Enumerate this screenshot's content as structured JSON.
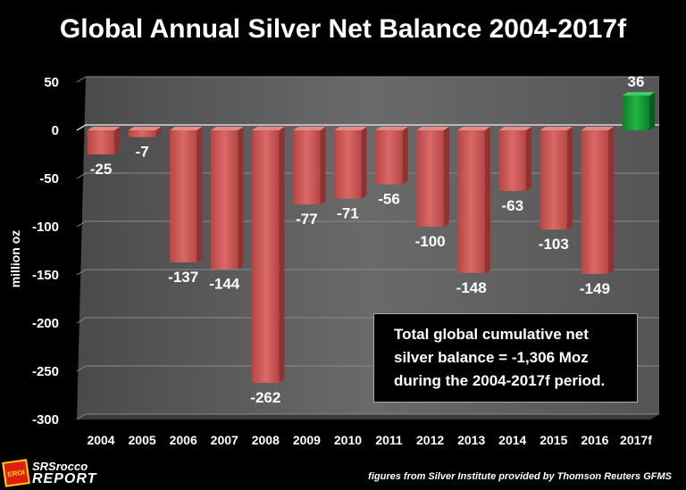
{
  "chart_data": {
    "type": "bar",
    "title": "Global Annual Silver Net Balance 2004-2017f",
    "ylabel": "million oz",
    "xlabel": "",
    "ylim": [
      -300,
      50
    ],
    "yticks": [
      "50",
      "0",
      "-50",
      "-100",
      "-150",
      "-200",
      "-250",
      "-300"
    ],
    "grid": true,
    "categories": [
      "2004",
      "2005",
      "2006",
      "2007",
      "2008",
      "2009",
      "2010",
      "2011",
      "2012",
      "2013",
      "2014",
      "2015",
      "2016",
      "2017f"
    ],
    "values": [
      -25,
      -7,
      -137,
      -144,
      -262,
      -77,
      -71,
      -56,
      -100,
      -148,
      -63,
      -103,
      -149,
      36
    ],
    "data_labels": [
      "-25",
      "-7",
      "-137",
      "-144",
      "-262",
      "-77",
      "-71",
      "-56",
      "-100",
      "-148",
      "-63",
      "-103",
      "-149",
      "36"
    ],
    "colors": {
      "negative": "#c9504f",
      "positive": "#18a13a",
      "background": "#000000",
      "plot_wall": "#5c5c5c"
    }
  },
  "annotation": {
    "line1": "Total global cumulative net",
    "line2": "silver balance = -1,306 Moz",
    "line3": "during the 2004-2017f period."
  },
  "logo": {
    "badge": "EROI",
    "line1": "SRSrocco",
    "line2": "REPORT"
  },
  "source": "figures from Silver Institute provided by Thomson Reuters GFMS"
}
